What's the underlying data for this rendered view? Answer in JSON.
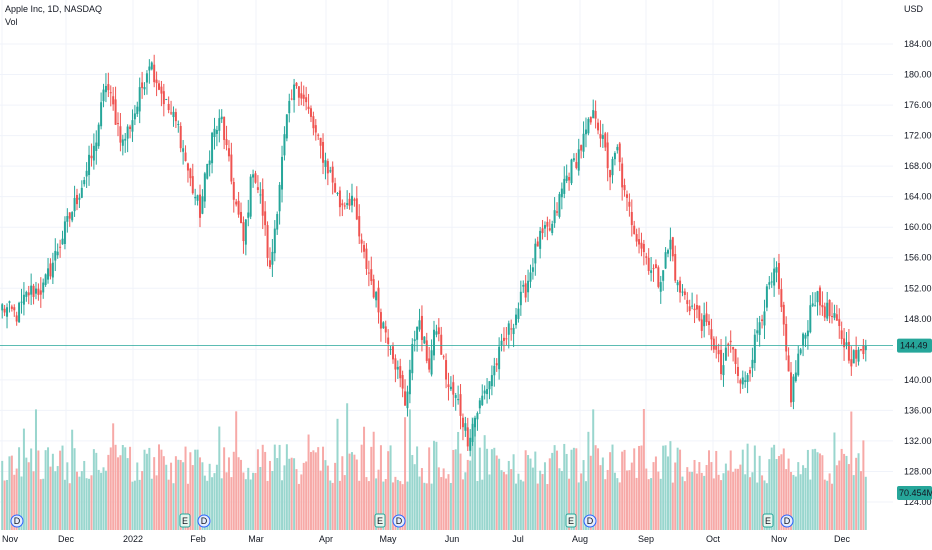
{
  "header": {
    "title": "Apple Inc, 1D, NASDAQ",
    "volume_label": "Vol",
    "currency": "USD"
  },
  "colors": {
    "up": "#26a69a",
    "down": "#ef5350",
    "up_volume": "#99d6ce",
    "down_volume": "#f7a9a7",
    "last_price": "#26a69a",
    "grid": "#f0f3fa"
  },
  "chart_data": {
    "type": "candlestick",
    "symbol": "Apple Inc",
    "interval": "1D",
    "exchange": "NASDAQ",
    "currency": "USD",
    "indicator": "Vol",
    "y_ticks": [
      124,
      128,
      132,
      136,
      140,
      144,
      148,
      152,
      156,
      160,
      164,
      168,
      172,
      176,
      180,
      184
    ],
    "ylim": [
      123,
      186
    ],
    "grid": true,
    "x_ticks": [
      "Nov",
      "Dec",
      "2022",
      "Feb",
      "Mar",
      "Apr",
      "May",
      "Jun",
      "Jul",
      "Aug",
      "Sep",
      "Oct",
      "Nov",
      "Dec"
    ],
    "trend_points": [
      [
        0,
        149.5
      ],
      [
        6,
        148.5
      ],
      [
        11,
        151.5
      ],
      [
        17,
        152
      ],
      [
        24,
        158
      ],
      [
        30,
        163
      ],
      [
        38,
        170
      ],
      [
        43,
        179
      ],
      [
        50,
        171
      ],
      [
        56,
        176
      ],
      [
        61,
        182
      ],
      [
        68,
        176
      ],
      [
        73,
        173
      ],
      [
        78,
        166
      ],
      [
        82,
        162
      ],
      [
        87,
        172
      ],
      [
        91,
        174
      ],
      [
        95,
        166
      ],
      [
        100,
        158
      ],
      [
        104,
        168
      ],
      [
        108,
        162
      ],
      [
        111,
        154
      ],
      [
        115,
        166
      ],
      [
        118,
        174
      ],
      [
        122,
        179
      ],
      [
        126,
        176
      ],
      [
        131,
        171
      ],
      [
        136,
        167
      ],
      [
        140,
        163
      ],
      [
        145,
        164
      ],
      [
        149,
        157
      ],
      [
        153,
        153
      ],
      [
        157,
        148
      ],
      [
        161,
        145
      ],
      [
        164,
        141
      ],
      [
        167,
        137
      ],
      [
        172,
        148
      ],
      [
        177,
        142
      ],
      [
        180,
        147
      ],
      [
        185,
        139
      ],
      [
        189,
        137
      ],
      [
        193,
        132.5
      ],
      [
        197,
        136
      ],
      [
        202,
        140
      ],
      [
        207,
        144
      ],
      [
        212,
        148
      ],
      [
        217,
        152
      ],
      [
        222,
        158
      ],
      [
        228,
        160
      ],
      [
        233,
        166
      ],
      [
        238,
        169
      ],
      [
        243,
        173
      ],
      [
        246,
        175
      ],
      [
        249,
        171
      ],
      [
        252,
        167
      ],
      [
        255,
        170
      ],
      [
        258,
        164
      ],
      [
        262,
        160
      ],
      [
        267,
        156
      ],
      [
        272,
        153
      ],
      [
        277,
        158
      ],
      [
        280,
        152
      ],
      [
        285,
        150
      ],
      [
        289,
        148
      ],
      [
        294,
        146
      ],
      [
        298,
        141
      ],
      [
        302,
        145
      ],
      [
        306,
        139
      ],
      [
        310,
        142
      ],
      [
        314,
        148
      ],
      [
        318,
        152
      ],
      [
        321,
        154
      ],
      [
        324,
        146
      ],
      [
        327,
        138
      ],
      [
        330,
        143
      ],
      [
        333,
        146
      ],
      [
        336,
        151
      ],
      [
        339,
        150
      ],
      [
        342,
        149
      ],
      [
        346,
        147
      ],
      [
        349,
        145
      ],
      [
        352,
        143
      ],
      [
        355,
        143
      ],
      [
        358,
        144.5
      ]
    ],
    "series": [
      {
        "name": "Price",
        "last_value": 144.49,
        "last_value_label": "144.49"
      },
      {
        "name": "Vol",
        "last_value": 70454000,
        "last_value_label": "70.454M"
      }
    ],
    "event_markers": [
      {
        "type": "D",
        "x_label": "Nov"
      },
      {
        "type": "E",
        "x_label": "Feb"
      },
      {
        "type": "D",
        "x_label": "Feb"
      },
      {
        "type": "E",
        "x_label": "May"
      },
      {
        "type": "D",
        "x_label": "May"
      },
      {
        "type": "E",
        "x_label": "Aug"
      },
      {
        "type": "D",
        "x_label": "Aug"
      },
      {
        "type": "E",
        "x_label": "Nov"
      },
      {
        "type": "D",
        "x_label": "Nov"
      }
    ]
  }
}
